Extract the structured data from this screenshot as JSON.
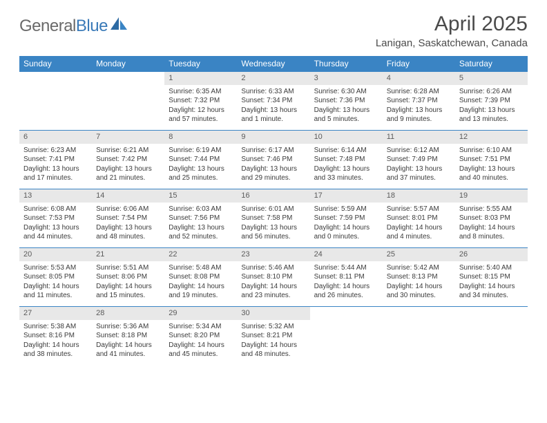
{
  "logo": {
    "general": "General",
    "blue": "Blue"
  },
  "title": "April 2025",
  "location": "Lanigan, Saskatchewan, Canada",
  "colors": {
    "header_bg": "#3a84c4",
    "header_text": "#ffffff",
    "daynum_bg": "#e8e8e8",
    "daynum_text": "#5a5a5a",
    "body_text": "#3a3a3a",
    "border": "#3a84c4"
  },
  "day_headers": [
    "Sunday",
    "Monday",
    "Tuesday",
    "Wednesday",
    "Thursday",
    "Friday",
    "Saturday"
  ],
  "weeks": [
    [
      null,
      null,
      {
        "n": "1",
        "sr": "6:35 AM",
        "ss": "7:32 PM",
        "dl": "12 hours and 57 minutes."
      },
      {
        "n": "2",
        "sr": "6:33 AM",
        "ss": "7:34 PM",
        "dl": "13 hours and 1 minute."
      },
      {
        "n": "3",
        "sr": "6:30 AM",
        "ss": "7:36 PM",
        "dl": "13 hours and 5 minutes."
      },
      {
        "n": "4",
        "sr": "6:28 AM",
        "ss": "7:37 PM",
        "dl": "13 hours and 9 minutes."
      },
      {
        "n": "5",
        "sr": "6:26 AM",
        "ss": "7:39 PM",
        "dl": "13 hours and 13 minutes."
      }
    ],
    [
      {
        "n": "6",
        "sr": "6:23 AM",
        "ss": "7:41 PM",
        "dl": "13 hours and 17 minutes."
      },
      {
        "n": "7",
        "sr": "6:21 AM",
        "ss": "7:42 PM",
        "dl": "13 hours and 21 minutes."
      },
      {
        "n": "8",
        "sr": "6:19 AM",
        "ss": "7:44 PM",
        "dl": "13 hours and 25 minutes."
      },
      {
        "n": "9",
        "sr": "6:17 AM",
        "ss": "7:46 PM",
        "dl": "13 hours and 29 minutes."
      },
      {
        "n": "10",
        "sr": "6:14 AM",
        "ss": "7:48 PM",
        "dl": "13 hours and 33 minutes."
      },
      {
        "n": "11",
        "sr": "6:12 AM",
        "ss": "7:49 PM",
        "dl": "13 hours and 37 minutes."
      },
      {
        "n": "12",
        "sr": "6:10 AM",
        "ss": "7:51 PM",
        "dl": "13 hours and 40 minutes."
      }
    ],
    [
      {
        "n": "13",
        "sr": "6:08 AM",
        "ss": "7:53 PM",
        "dl": "13 hours and 44 minutes."
      },
      {
        "n": "14",
        "sr": "6:06 AM",
        "ss": "7:54 PM",
        "dl": "13 hours and 48 minutes."
      },
      {
        "n": "15",
        "sr": "6:03 AM",
        "ss": "7:56 PM",
        "dl": "13 hours and 52 minutes."
      },
      {
        "n": "16",
        "sr": "6:01 AM",
        "ss": "7:58 PM",
        "dl": "13 hours and 56 minutes."
      },
      {
        "n": "17",
        "sr": "5:59 AM",
        "ss": "7:59 PM",
        "dl": "14 hours and 0 minutes."
      },
      {
        "n": "18",
        "sr": "5:57 AM",
        "ss": "8:01 PM",
        "dl": "14 hours and 4 minutes."
      },
      {
        "n": "19",
        "sr": "5:55 AM",
        "ss": "8:03 PM",
        "dl": "14 hours and 8 minutes."
      }
    ],
    [
      {
        "n": "20",
        "sr": "5:53 AM",
        "ss": "8:05 PM",
        "dl": "14 hours and 11 minutes."
      },
      {
        "n": "21",
        "sr": "5:51 AM",
        "ss": "8:06 PM",
        "dl": "14 hours and 15 minutes."
      },
      {
        "n": "22",
        "sr": "5:48 AM",
        "ss": "8:08 PM",
        "dl": "14 hours and 19 minutes."
      },
      {
        "n": "23",
        "sr": "5:46 AM",
        "ss": "8:10 PM",
        "dl": "14 hours and 23 minutes."
      },
      {
        "n": "24",
        "sr": "5:44 AM",
        "ss": "8:11 PM",
        "dl": "14 hours and 26 minutes."
      },
      {
        "n": "25",
        "sr": "5:42 AM",
        "ss": "8:13 PM",
        "dl": "14 hours and 30 minutes."
      },
      {
        "n": "26",
        "sr": "5:40 AM",
        "ss": "8:15 PM",
        "dl": "14 hours and 34 minutes."
      }
    ],
    [
      {
        "n": "27",
        "sr": "5:38 AM",
        "ss": "8:16 PM",
        "dl": "14 hours and 38 minutes."
      },
      {
        "n": "28",
        "sr": "5:36 AM",
        "ss": "8:18 PM",
        "dl": "14 hours and 41 minutes."
      },
      {
        "n": "29",
        "sr": "5:34 AM",
        "ss": "8:20 PM",
        "dl": "14 hours and 45 minutes."
      },
      {
        "n": "30",
        "sr": "5:32 AM",
        "ss": "8:21 PM",
        "dl": "14 hours and 48 minutes."
      },
      null,
      null,
      null
    ]
  ],
  "labels": {
    "sunrise": "Sunrise:",
    "sunset": "Sunset:",
    "daylight": "Daylight:"
  }
}
